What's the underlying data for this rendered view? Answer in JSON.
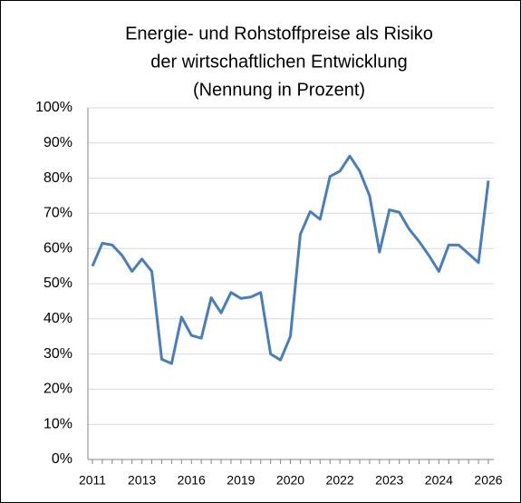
{
  "chart_data": {
    "type": "line",
    "title": [
      "Energie- und Rohstoffpreise als Risiko",
      "der wirtschaftlichen Entwicklung",
      "(Nennung in Prozent)"
    ],
    "categories": [
      "2011",
      null,
      null,
      null,
      null,
      "2013",
      null,
      null,
      null,
      null,
      "2016",
      null,
      null,
      null,
      null,
      "2019",
      null,
      null,
      null,
      null,
      "2020",
      null,
      null,
      null,
      null,
      "2022",
      null,
      null,
      null,
      null,
      "2023",
      null,
      null,
      null,
      null,
      "2024",
      null,
      null,
      null,
      null,
      "2026"
    ],
    "series": [
      {
        "name": "Energie- und Rohstoffpreise",
        "color": "#4a7ebb",
        "values": [
          55,
          61.5,
          61,
          58,
          53.5,
          57,
          53.5,
          28.5,
          27.3,
          40.5,
          35.3,
          34.5,
          46,
          41.7,
          47.5,
          45.8,
          46.2,
          47.5,
          30,
          28.3,
          35,
          64,
          70.5,
          68.3,
          80.5,
          82,
          86.3,
          82,
          75,
          59,
          71,
          70.3,
          65.5,
          62,
          58,
          53.5,
          61,
          61,
          58.5,
          56,
          79.3
        ]
      }
    ],
    "ylim": [
      0,
      100
    ],
    "yticks": [
      {
        "value": 0,
        "label": "0%"
      },
      {
        "value": 10,
        "label": "10%"
      },
      {
        "value": 20,
        "label": "20%"
      },
      {
        "value": 30,
        "label": "30%"
      },
      {
        "value": 40,
        "label": "40%"
      },
      {
        "value": 50,
        "label": "50%"
      },
      {
        "value": 60,
        "label": "60%"
      },
      {
        "value": 70,
        "label": "70%"
      },
      {
        "value": 80,
        "label": "80%"
      },
      {
        "value": 90,
        "label": "90%"
      },
      {
        "value": 100,
        "label": "100%"
      }
    ],
    "grid": true
  }
}
